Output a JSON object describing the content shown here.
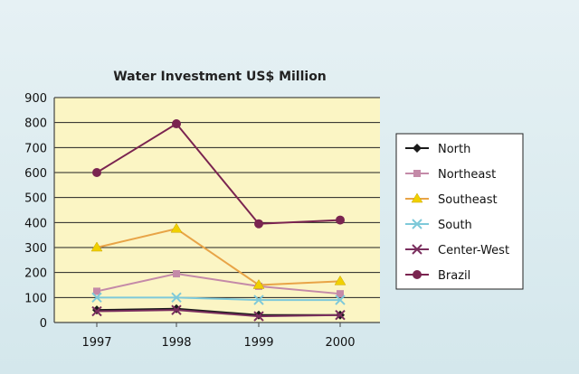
{
  "chart_data": {
    "type": "line",
    "title": "Water Investment US$ Million",
    "xlabel": "",
    "ylabel": "",
    "x": [
      "1997",
      "1998",
      "1999",
      "2000"
    ],
    "ylim": [
      0,
      900
    ],
    "yticks": [
      0,
      100,
      200,
      300,
      400,
      500,
      600,
      700,
      800,
      900
    ],
    "grid": true,
    "legend_position": "right",
    "plot_background": "#fbf5c4",
    "series": [
      {
        "name": "North",
        "color": "#1a1a1a",
        "marker": "diamond",
        "values": [
          50,
          55,
          30,
          30
        ]
      },
      {
        "name": "Northeast",
        "color": "#c48aa8",
        "marker": "square",
        "values": [
          125,
          195,
          145,
          115
        ]
      },
      {
        "name": "Southeast",
        "color": "#e8a447",
        "marker": "triangle",
        "marker_color": "#f0d000",
        "values": [
          300,
          375,
          150,
          165
        ]
      },
      {
        "name": "South",
        "color": "#7ec9d9",
        "marker": "x",
        "values": [
          100,
          100,
          90,
          90
        ]
      },
      {
        "name": "Center-West",
        "color": "#7a2e5e",
        "marker": "x",
        "values": [
          45,
          50,
          25,
          30
        ]
      },
      {
        "name": "Brazil",
        "color": "#7a2450",
        "marker": "circle",
        "values": [
          600,
          795,
          395,
          410
        ]
      }
    ]
  }
}
